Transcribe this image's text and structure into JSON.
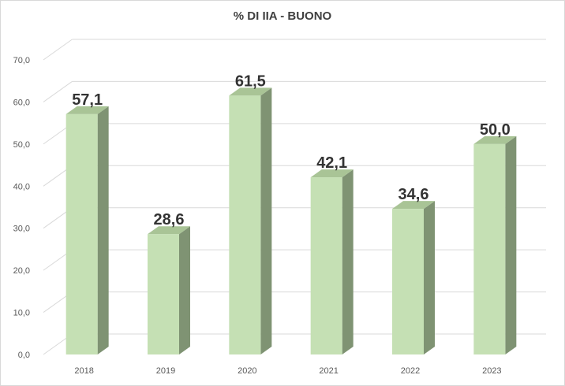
{
  "chart_data": {
    "type": "bar",
    "title": "% DI IIA - BUONO",
    "categories": [
      "2018",
      "2019",
      "2020",
      "2021",
      "2022",
      "2023"
    ],
    "values": [
      57.1,
      28.6,
      61.5,
      42.1,
      34.6,
      50.0
    ],
    "data_labels": [
      "57,1",
      "28,6",
      "61,5",
      "42,1",
      "34,6",
      "50,0"
    ],
    "y_ticks": [
      "0,0",
      "10,0",
      "20,0",
      "30,0",
      "40,0",
      "50,0",
      "60,0",
      "70,0"
    ],
    "ylim": [
      0,
      70
    ],
    "xlabel": "",
    "ylabel": "",
    "grid": true,
    "legend": "none",
    "colors": {
      "bar_front": "#c5e0b4",
      "bar_side": "#7f9373",
      "bar_top": "#a9c496",
      "grid": "#d9d9d9"
    }
  }
}
